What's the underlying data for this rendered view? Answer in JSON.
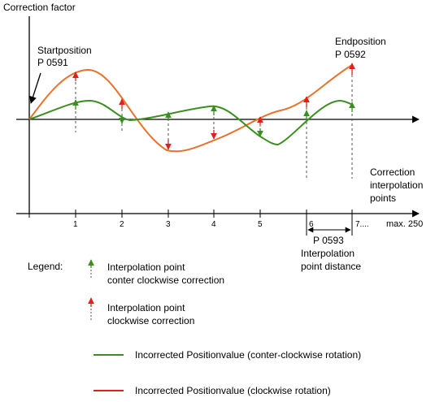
{
  "diagram": {
    "y_axis_label": "Correction factor",
    "start_label": "Startposition",
    "start_param": "P 0591",
    "end_label": "Endposition",
    "end_param": "P 0592",
    "interpolation_axis_label": [
      "Correction",
      "interpolation",
      "points"
    ],
    "points": [
      "1",
      "2",
      "3",
      "4",
      "5",
      "6",
      "7...."
    ],
    "max_label": "max. 250",
    "distance_param": "P 0593",
    "distance_label": [
      "Interpolation",
      "point distance"
    ]
  },
  "legend": {
    "title": "Legend:",
    "ccw_point": [
      "Interpolation point",
      "conter clockwise correction"
    ],
    "cw_point": [
      "Interpolation point",
      "clockwise correction"
    ],
    "green_line": "Incorrected Positionvalue (conter-clockwise rotation)",
    "red_line": "Incorrected Positionvalue (clockwise rotation)"
  },
  "colors": {
    "green": "#3a8f1f",
    "orange": "#e8722a",
    "red": "#e0201a",
    "black": "#000000"
  }
}
